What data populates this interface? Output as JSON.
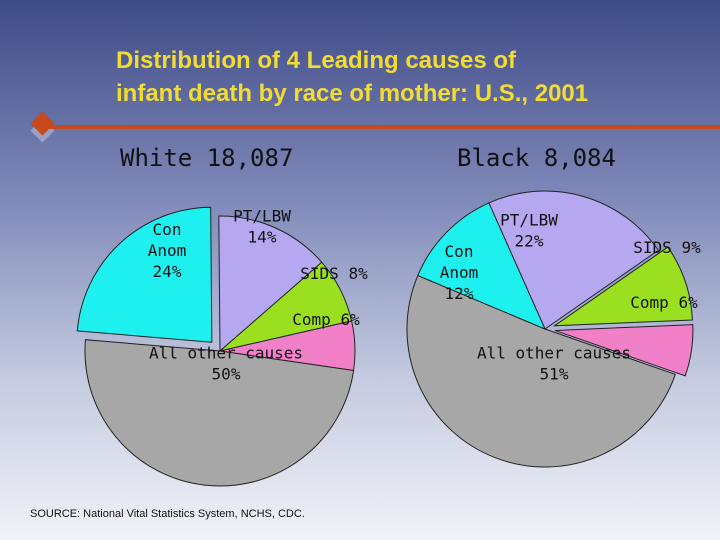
{
  "title": {
    "line1": "Distribution of 4 Leading causes of",
    "line2": "infant death by race of mother: U.S., 2001"
  },
  "source": "SOURCE: National  Vital Statistics System, NCHS, CDC.",
  "colors": {
    "title": "#f2dc32",
    "rule": "#c8491e",
    "Con Anom": "#1ef0f0",
    "PT/LBW": "#b5a8f0",
    "SIDS": "#9ae020",
    "Comp": "#f280c8",
    "All other causes": "#a7a7a7"
  },
  "chart_data": [
    {
      "type": "pie",
      "group_label": "White 18,087",
      "slices": [
        {
          "category": "PT/LBW",
          "value": 14,
          "label_lines": [
            "PT/LBW",
            "14%"
          ]
        },
        {
          "category": "SIDS",
          "value": 8,
          "label_lines": [
            "SIDS 8%"
          ]
        },
        {
          "category": "Comp",
          "value": 6,
          "label_lines": [
            "Comp 6%"
          ]
        },
        {
          "category": "All other causes",
          "value": 50,
          "label_lines": [
            "All other causes",
            "50%"
          ]
        },
        {
          "category": "Con Anom",
          "value": 24,
          "label_lines": [
            "Con",
            "Anom",
            "24%"
          ]
        }
      ]
    },
    {
      "type": "pie",
      "group_label": "Black 8,084",
      "slices": [
        {
          "category": "PT/LBW",
          "value": 22,
          "label_lines": [
            "PT/LBW",
            "22%"
          ]
        },
        {
          "category": "SIDS",
          "value": 9,
          "label_lines": [
            "SIDS 9%"
          ]
        },
        {
          "category": "Comp",
          "value": 6,
          "label_lines": [
            "Comp 6%"
          ]
        },
        {
          "category": "All other causes",
          "value": 51,
          "label_lines": [
            "All other causes",
            "51%"
          ]
        },
        {
          "category": "Con Anom",
          "value": 12,
          "label_lines": [
            "Con",
            "Anom",
            "12%"
          ]
        }
      ]
    }
  ]
}
